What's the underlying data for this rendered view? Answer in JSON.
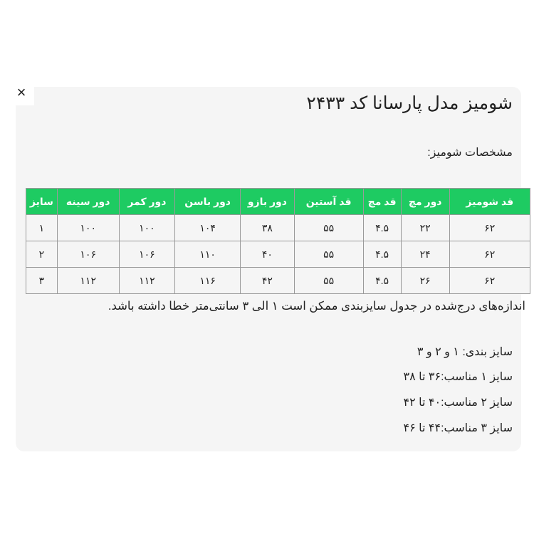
{
  "close_label": "×",
  "title": "شومیز مدل پارسانا کد ۲۴۳۳",
  "subtitle": "مشخصات شومیز:",
  "table": {
    "header_color": "#1ecb62",
    "columns": [
      "قد شومیز",
      "دور مچ",
      "قد مچ",
      "قد آستین",
      "دور بازو",
      "دور باسن",
      "دور کمر",
      "دور سینه",
      "سایز"
    ],
    "rows": [
      [
        "۶۲",
        "۲۲",
        "۴.۵",
        "۵۵",
        "۳۸",
        "۱۰۴",
        "۱۰۰",
        "۱۰۰",
        "۱"
      ],
      [
        "۶۲",
        "۲۴",
        "۴.۵",
        "۵۵",
        "۴۰",
        "۱۱۰",
        "۱۰۶",
        "۱۰۶",
        "۲"
      ],
      [
        "۶۲",
        "۲۶",
        "۴.۵",
        "۵۵",
        "۴۲",
        "۱۱۶",
        "۱۱۲",
        "۱۱۲",
        "۳"
      ]
    ]
  },
  "note": "اندازه‌های درج‌شده در جدول سایزبندی ممکن است ۱ الی ۳ سانتی‌متر خطا داشته باشد.",
  "size_info": [
    "سایز بندی: ۱ و ۲ و ۳",
    "سایز ۱ مناسب:۳۶ تا ۳۸",
    "سایز ۲ مناسب:۴۰ تا ۴۲",
    "سایز ۳ مناسب:۴۴ تا ۴۶"
  ]
}
